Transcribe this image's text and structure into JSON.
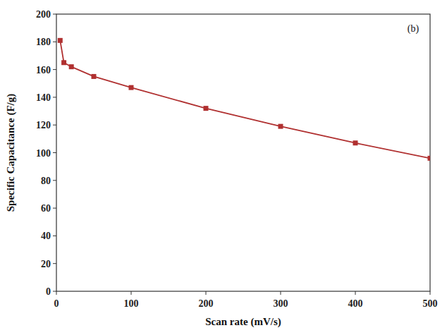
{
  "chart_data": {
    "type": "line",
    "x": [
      5,
      10,
      20,
      50,
      100,
      200,
      300,
      400,
      500
    ],
    "values": [
      181,
      165,
      162,
      155,
      147,
      132,
      119,
      107,
      96
    ],
    "color": "#b03030",
    "marker": "square",
    "xlabel": "Scan rate (mV/s)",
    "ylabel": "Specific Capacitance (F/g)",
    "annotation": "(b)",
    "xlim": [
      0,
      500
    ],
    "ylim": [
      0,
      200
    ],
    "xticks": [
      0,
      100,
      200,
      300,
      400,
      500
    ],
    "yticks": [
      0,
      20,
      40,
      60,
      80,
      100,
      120,
      140,
      160,
      180,
      200
    ]
  }
}
